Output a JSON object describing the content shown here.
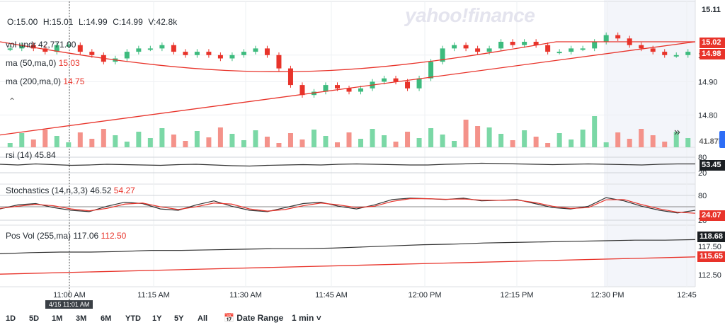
{
  "watermark": "yahoo!finance",
  "ohlc": {
    "open": "O:15.00",
    "high": "H:15.01",
    "low": "L:14.99",
    "close": "C:14.99",
    "volume": "V:42.8k"
  },
  "studies": {
    "vol": {
      "label": "vol undr",
      "value": "42,771.00"
    },
    "ma50": {
      "label": "ma (50,ma,0)",
      "value": "15.03"
    },
    "ma200": {
      "label": "ma (200,ma,0)",
      "value": "14.75"
    },
    "rsi": {
      "label": "rsi (14)",
      "value": "45.84"
    },
    "stoch": {
      "label": "Stochastics (14,n,3,3)",
      "k": "46.52",
      "d": "54.27"
    },
    "posvol": {
      "label": "Pos Vol (255,ma)",
      "a": "117.06",
      "b": "112.50"
    }
  },
  "price_tags": {
    "top": "15.11",
    "ma50": "15.02",
    "last": "14.98",
    "volume": "41.87k",
    "rsi": "53.45",
    "stoch": "24.07",
    "posvol_a": "118.68",
    "posvol_b": "115.65"
  },
  "crosshair_time": "4/15 11:01 AM",
  "toolbar": {
    "ranges": [
      "1D",
      "5D",
      "1M",
      "3M",
      "6M",
      "YTD",
      "1Y",
      "5Y",
      "All"
    ],
    "date_range": "Date Range",
    "interval": "1 min"
  },
  "icons": {
    "collapse": "chevron-up-icon",
    "expand": "double-chevron-right-icon",
    "calendar": "calendar-icon"
  },
  "colors": {
    "up": "#3dbb7e",
    "down": "#e8332a",
    "vol_up": "#7bd8a6",
    "vol_down": "#f4928a",
    "line": "#333333",
    "ma": "#e8332a"
  },
  "chart_data": {
    "type": "candlestick",
    "x_ticks": [
      "11:00 AM",
      "11:15 AM",
      "11:30 AM",
      "11:45 AM",
      "12:00 PM",
      "12:15 PM",
      "12:30 PM",
      "12:45"
    ],
    "price_axis_ticks": [
      14.8,
      14.9,
      14.98
    ],
    "price_range": [
      14.72,
      15.12
    ],
    "rsi_axis_ticks": [
      80,
      20
    ],
    "stoch_axis_ticks": [
      80,
      20
    ],
    "posvol_axis_ticks": [
      117.5,
      112.5
    ],
    "posvol_range": [
      111.0,
      121.0
    ],
    "close_path": [
      15.0,
      15.01,
      15.0,
      14.99,
      15.01,
      15.01,
      14.99,
      14.98,
      14.96,
      14.97,
      14.99,
      15.0,
      15.0,
      15.01,
      14.99,
      14.98,
      14.99,
      14.98,
      14.97,
      14.98,
      14.99,
      15.0,
      14.98,
      14.94,
      14.89,
      14.86,
      14.87,
      14.89,
      14.88,
      14.87,
      14.88,
      14.9,
      14.91,
      14.9,
      14.88,
      14.91,
      14.96,
      15.0,
      15.01,
      15.0,
      14.99,
      15.0,
      15.02,
      15.01,
      15.02,
      15.01,
      14.99,
      14.99,
      15.0,
      15.0,
      15.02,
      15.04,
      15.03,
      15.01,
      15.0,
      14.99,
      14.98,
      14.98,
      14.99
    ],
    "ma50": {
      "start": 15.02,
      "end": 15.02,
      "mid_low": 14.93
    },
    "ma200": {
      "start": 14.74,
      "end": 15.02
    },
    "rsi_values": [
      52,
      50,
      53,
      51,
      49,
      50,
      52,
      51,
      50,
      49,
      51,
      52,
      50,
      48,
      47,
      49,
      50,
      51,
      50,
      52,
      53,
      52,
      51,
      50,
      50,
      52,
      53,
      55,
      54,
      53,
      52,
      51,
      52,
      53,
      52,
      51,
      50,
      52,
      53,
      53
    ],
    "stoch_k": [
      40,
      55,
      60,
      45,
      35,
      30,
      50,
      65,
      60,
      40,
      35,
      55,
      70,
      50,
      35,
      30,
      45,
      60,
      65,
      50,
      40,
      55,
      75,
      80,
      78,
      75,
      80,
      70,
      72,
      75,
      60,
      45,
      40,
      50,
      82,
      70,
      50,
      35,
      25,
      35
    ],
    "stoch_d": [
      42,
      50,
      57,
      52,
      40,
      33,
      42,
      58,
      62,
      48,
      38,
      48,
      62,
      58,
      40,
      32,
      38,
      52,
      62,
      55,
      45,
      50,
      68,
      78,
      78,
      76,
      77,
      73,
      72,
      73,
      64,
      50,
      42,
      45,
      74,
      75,
      56,
      40,
      28,
      24
    ],
    "posvol_a": [
      116.2,
      116.4,
      116.5,
      116.5,
      116.6,
      116.8,
      116.8,
      116.9,
      117.0,
      117.1,
      117.1,
      117.2,
      117.4,
      117.6,
      117.8,
      117.9,
      118.1,
      118.2,
      118.3,
      118.4,
      118.5,
      118.6,
      118.6,
      118.7
    ],
    "posvol_b_range": [
      112.6,
      115.65
    ]
  }
}
